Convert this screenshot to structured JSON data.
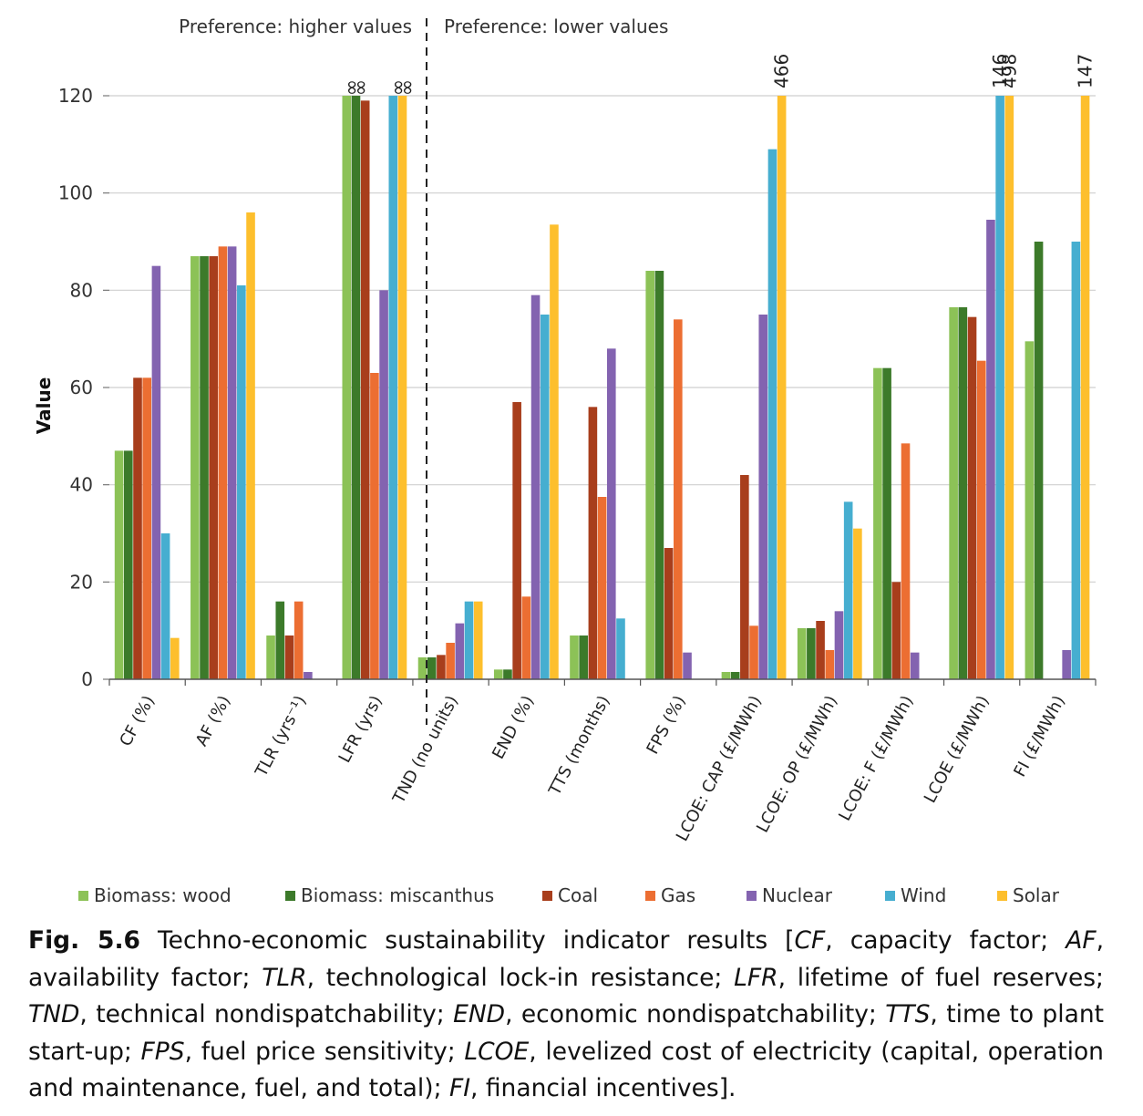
{
  "chart_data": {
    "type": "bar",
    "ylabel": "Value",
    "ylim": [
      0,
      120
    ],
    "yticks": [
      0,
      20,
      40,
      60,
      80,
      100,
      120
    ],
    "header_left": "Preference: higher values",
    "header_right": "Preference: lower values",
    "categories": [
      "CF (%)",
      "AF (%)",
      "TLR (yrs⁻¹)",
      "LFR (yrs)",
      "TND (no units)",
      "END (%)",
      "TTS (months)",
      "FPS (%)",
      "LCOE: CAP (£/MWh)",
      "LCOE: OP (£/MWh)",
      "LCOE: F (£/MWh)",
      "LCOE (£/MWh)",
      "FI (£/MWh)"
    ],
    "series": [
      {
        "name": "Biomass: wood",
        "color": "#8cc257",
        "values": [
          47,
          87,
          9,
          120,
          4.5,
          2,
          9,
          84,
          1.5,
          10.5,
          64,
          76.5,
          69.5
        ]
      },
      {
        "name": "Biomass: miscanthus",
        "color": "#3c7a2a",
        "values": [
          47,
          87,
          16,
          120,
          4.5,
          2,
          9,
          84,
          1.5,
          10.5,
          64,
          76.5,
          90
        ]
      },
      {
        "name": "Coal",
        "color": "#a83e1c",
        "values": [
          62,
          87,
          9,
          119,
          5,
          57,
          56,
          27,
          42,
          12,
          20,
          74.5,
          0
        ]
      },
      {
        "name": "Gas",
        "color": "#ec6e32",
        "values": [
          62,
          89,
          16,
          63,
          7.5,
          17,
          37.5,
          74,
          11,
          6,
          48.5,
          65.5,
          0
        ]
      },
      {
        "name": "Nuclear",
        "color": "#8363b0",
        "values": [
          85,
          89,
          1.5,
          80,
          11.5,
          79,
          68,
          5.5,
          75,
          14,
          5.5,
          94.5,
          6
        ]
      },
      {
        "name": "Wind",
        "color": "#46aed0",
        "values": [
          30,
          81,
          0,
          120,
          16,
          75,
          12.5,
          0,
          109,
          36.5,
          0,
          120,
          90
        ]
      },
      {
        "name": "Solar",
        "color": "#fdbf2d",
        "values": [
          8.5,
          96,
          0,
          120,
          16,
          93.5,
          0,
          0,
          120,
          31,
          0,
          120,
          120
        ]
      }
    ],
    "overflow_labels": [
      {
        "category": 3,
        "series": 0,
        "text": "∞"
      },
      {
        "category": 3,
        "series": 1,
        "text": "∞"
      },
      {
        "category": 3,
        "series": 5,
        "text": "∞"
      },
      {
        "category": 3,
        "series": 6,
        "text": "∞"
      },
      {
        "category": 8,
        "series": 6,
        "text": "466"
      },
      {
        "category": 11,
        "series": 5,
        "text": "146"
      },
      {
        "category": 11,
        "series": 6,
        "text": "498"
      },
      {
        "category": 12,
        "series": 6,
        "text": "147"
      }
    ]
  },
  "caption": {
    "fig_label": "Fig. 5.6",
    "parts": [
      {
        "t": " Techno-economic sustainability indicator results [",
        "i": false
      },
      {
        "t": "CF",
        "i": true
      },
      {
        "t": ", capacity factor; ",
        "i": false
      },
      {
        "t": "AF",
        "i": true
      },
      {
        "t": ", availability factor; ",
        "i": false
      },
      {
        "t": "TLR",
        "i": true
      },
      {
        "t": ", technological lock-in resistance; ",
        "i": false
      },
      {
        "t": "LFR",
        "i": true
      },
      {
        "t": ", lifetime of fuel reserves; ",
        "i": false
      },
      {
        "t": "TND",
        "i": true
      },
      {
        "t": ", technical nondispatchability; ",
        "i": false
      },
      {
        "t": "END",
        "i": true
      },
      {
        "t": ", economic nondispatchability; ",
        "i": false
      },
      {
        "t": "TTS",
        "i": true
      },
      {
        "t": ", time to plant start-up; ",
        "i": false
      },
      {
        "t": "FPS",
        "i": true
      },
      {
        "t": ", fuel price sensitivity; ",
        "i": false
      },
      {
        "t": "LCOE",
        "i": true
      },
      {
        "t": ", levelized cost of electricity (capital, operation and maintenance, fuel, and total); ",
        "i": false
      },
      {
        "t": "FI",
        "i": true
      },
      {
        "t": ", financial incentives].",
        "i": false
      }
    ]
  }
}
